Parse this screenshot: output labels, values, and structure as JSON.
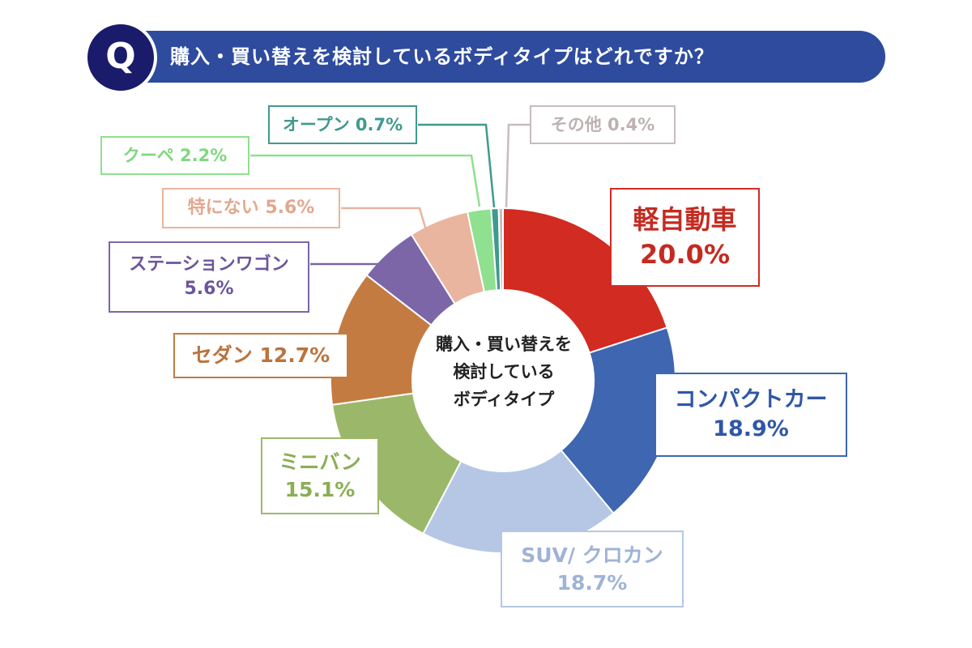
{
  "header": {
    "q_badge": "Q",
    "question": "購入・買い替えを検討しているボディタイプはどれですか？"
  },
  "center": {
    "lines": [
      "購入・買い替えを",
      "検討している",
      "ボディタイプ"
    ]
  },
  "chart_data": {
    "type": "pie",
    "variant": "donut",
    "segments": [
      {
        "label": "軽自動車",
        "value": 20.0,
        "value_label": "20.0%",
        "color": "#d22b22"
      },
      {
        "label": "コンパクトカー",
        "value": 18.9,
        "value_label": "18.9%",
        "color": "#3f66b0"
      },
      {
        "label": "SUV/ クロカン",
        "value": 18.7,
        "value_label": "18.7%",
        "color": "#b5c7e4"
      },
      {
        "label": "ミニバン",
        "value": 15.1,
        "value_label": "15.1%",
        "color": "#9bb86a"
      },
      {
        "label": "セダン",
        "value": 12.7,
        "value_label": "12.7%",
        "color": "#c47b42"
      },
      {
        "label": "ステーションワゴン",
        "value": 5.6,
        "value_label": "5.6%",
        "color": "#7c66a8"
      },
      {
        "label": "特にない",
        "value": 5.6,
        "value_label": "5.6%",
        "color": "#e9b59f"
      },
      {
        "label": "クーペ",
        "value": 2.2,
        "value_label": "2.2%",
        "color": "#8fe08f"
      },
      {
        "label": "オープン",
        "value": 0.7,
        "value_label": "0.7%",
        "color": "#3f9a8e"
      },
      {
        "label": "その他",
        "value": 0.4,
        "value_label": "0.4%",
        "color": "#c8bcbc"
      }
    ]
  }
}
